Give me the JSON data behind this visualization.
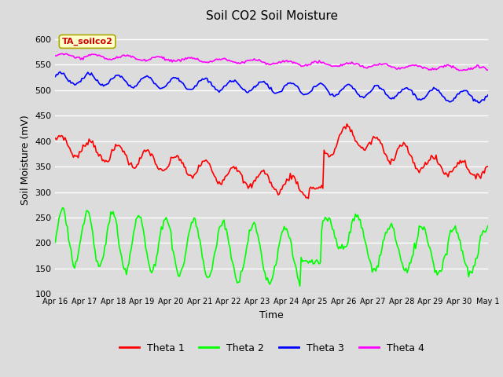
{
  "title": "Soil CO2 Soil Moisture",
  "xlabel": "Time",
  "ylabel": "Soil Moisture (mV)",
  "ylim": [
    100,
    625
  ],
  "yticks": [
    100,
    150,
    200,
    250,
    300,
    350,
    400,
    450,
    500,
    550,
    600
  ],
  "bg_color": "#dcdcdc",
  "plot_bg_color": "#dcdcdc",
  "annotation_text": "TA_soilco2",
  "annotation_bg": "#ffffcc",
  "annotation_border": "#aaaa00",
  "annotation_text_color": "#cc0000",
  "x_labels": [
    "Apr 16",
    "Apr 17",
    "Apr 18",
    "Apr 19",
    "Apr 20",
    "Apr 21",
    "Apr 22",
    "Apr 23",
    "Apr 24",
    "Apr 25",
    "Apr 26",
    "Apr 27",
    "Apr 28",
    "Apr 29",
    "Apr 30",
    "May 1"
  ],
  "legend_labels": [
    "Theta 1",
    "Theta 2",
    "Theta 3",
    "Theta 4"
  ],
  "colors": [
    "red",
    "lime",
    "blue",
    "magenta"
  ],
  "line_width": 1.2
}
